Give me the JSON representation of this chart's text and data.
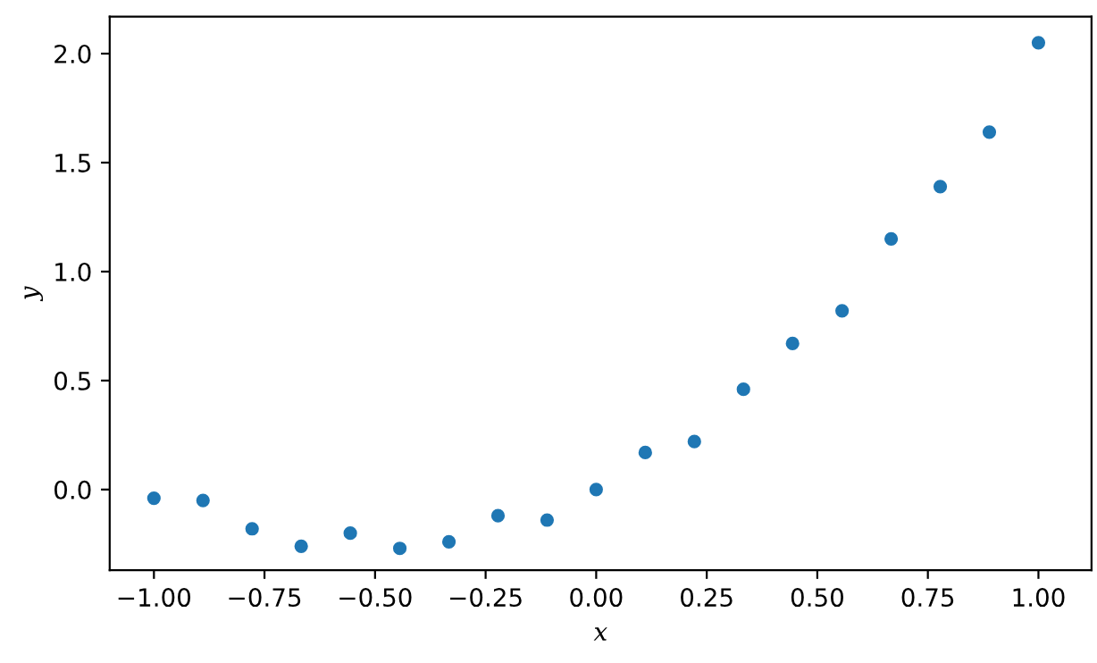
{
  "chart_data": {
    "type": "scatter",
    "xlabel": "x",
    "ylabel": "y",
    "x": [
      -1.0,
      -0.889,
      -0.778,
      -0.667,
      -0.556,
      -0.444,
      -0.333,
      -0.222,
      -0.111,
      0.0,
      0.111,
      0.222,
      0.333,
      0.444,
      0.556,
      0.667,
      0.778,
      0.889,
      1.0
    ],
    "series": [
      {
        "color": "#1f77b4",
        "values": [
          -0.04,
          -0.05,
          -0.18,
          -0.26,
          -0.2,
          -0.27,
          -0.24,
          -0.12,
          -0.14,
          0.0,
          0.17,
          0.22,
          0.46,
          0.67,
          0.82,
          1.15,
          1.39,
          1.64,
          2.05
        ]
      }
    ],
    "xlim": [
      -1.1,
      1.12
    ],
    "ylim": [
      -0.37,
      2.17
    ],
    "xticks": [
      {
        "value": -1,
        "label": "−1.00"
      },
      {
        "value": -0.75,
        "label": "−0.75"
      },
      {
        "value": -0.5,
        "label": "−0.50"
      },
      {
        "value": -0.25,
        "label": "−0.25"
      },
      {
        "value": 0,
        "label": "0.00"
      },
      {
        "value": 0.25,
        "label": "0.25"
      },
      {
        "value": 0.5,
        "label": "0.50"
      },
      {
        "value": 0.75,
        "label": "0.75"
      },
      {
        "value": 1,
        "label": "1.00"
      }
    ],
    "yticks": [
      {
        "value": 0,
        "label": "0.0"
      },
      {
        "value": 0.5,
        "label": "0.5"
      },
      {
        "value": 1,
        "label": "1.0"
      },
      {
        "value": 1.5,
        "label": "1.5"
      },
      {
        "value": 2,
        "label": "2.0"
      }
    ],
    "marker": "circle",
    "grid": false,
    "legend": false
  }
}
